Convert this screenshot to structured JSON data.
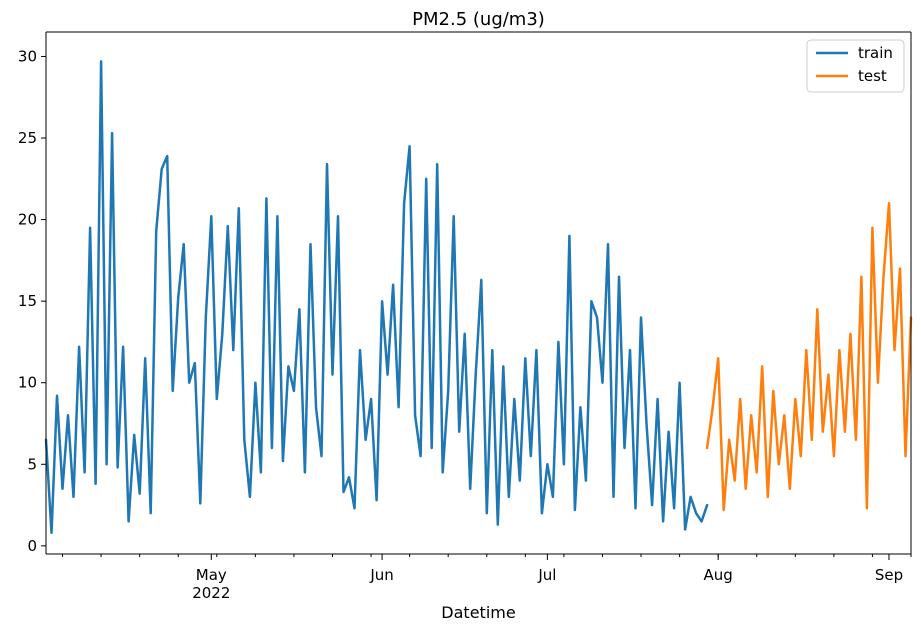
{
  "chart_data": {
    "type": "line",
    "title": "PM2.5 (ug/m3)",
    "xlabel": "Datetime",
    "ylabel": "",
    "x_range": [
      "2022-04-01",
      "2022-09-05"
    ],
    "ylim": [
      -0.5,
      31.5
    ],
    "y_ticks": [
      0,
      5,
      10,
      15,
      20,
      25,
      30
    ],
    "x_ticks": [
      {
        "date": "2022-05-01",
        "label": "May",
        "sublabel": "2022"
      },
      {
        "date": "2022-06-01",
        "label": "Jun",
        "sublabel": ""
      },
      {
        "date": "2022-07-01",
        "label": "Jul",
        "sublabel": ""
      },
      {
        "date": "2022-08-01",
        "label": "Aug",
        "sublabel": ""
      },
      {
        "date": "2022-09-01",
        "label": "Sep",
        "sublabel": ""
      }
    ],
    "grid": false,
    "legend": "top-right",
    "series": [
      {
        "name": "train",
        "color": "#1f77b4",
        "x": [
          "2022-04-01",
          "2022-04-02",
          "2022-04-03",
          "2022-04-04",
          "2022-04-05",
          "2022-04-06",
          "2022-04-07",
          "2022-04-08",
          "2022-04-09",
          "2022-04-10",
          "2022-04-11",
          "2022-04-12",
          "2022-04-13",
          "2022-04-14",
          "2022-04-15",
          "2022-04-16",
          "2022-04-17",
          "2022-04-18",
          "2022-04-19",
          "2022-04-20",
          "2022-04-21",
          "2022-04-22",
          "2022-04-23",
          "2022-04-24",
          "2022-04-25",
          "2022-04-26",
          "2022-04-27",
          "2022-04-28",
          "2022-04-29",
          "2022-04-30",
          "2022-05-01",
          "2022-05-02",
          "2022-05-03",
          "2022-05-04",
          "2022-05-05",
          "2022-05-06",
          "2022-05-07",
          "2022-05-08",
          "2022-05-09",
          "2022-05-10",
          "2022-05-11",
          "2022-05-12",
          "2022-05-13",
          "2022-05-14",
          "2022-05-15",
          "2022-05-16",
          "2022-05-17",
          "2022-05-18",
          "2022-05-19",
          "2022-05-20",
          "2022-05-21",
          "2022-05-22",
          "2022-05-23",
          "2022-05-24",
          "2022-05-25",
          "2022-05-26",
          "2022-05-27",
          "2022-05-28",
          "2022-05-29",
          "2022-05-30",
          "2022-05-31",
          "2022-06-01",
          "2022-06-02",
          "2022-06-03",
          "2022-06-04",
          "2022-06-05",
          "2022-06-06",
          "2022-06-07",
          "2022-06-08",
          "2022-06-09",
          "2022-06-10",
          "2022-06-11",
          "2022-06-12",
          "2022-06-13",
          "2022-06-14",
          "2022-06-15",
          "2022-06-16",
          "2022-06-17",
          "2022-06-18",
          "2022-06-19",
          "2022-06-20",
          "2022-06-21",
          "2022-06-22",
          "2022-06-23",
          "2022-06-24",
          "2022-06-25",
          "2022-06-26",
          "2022-06-27",
          "2022-06-28",
          "2022-06-29",
          "2022-06-30",
          "2022-07-01",
          "2022-07-02",
          "2022-07-03",
          "2022-07-04",
          "2022-07-05",
          "2022-07-06",
          "2022-07-07",
          "2022-07-08",
          "2022-07-09",
          "2022-07-10",
          "2022-07-11",
          "2022-07-12",
          "2022-07-13",
          "2022-07-14",
          "2022-07-15",
          "2022-07-16",
          "2022-07-17",
          "2022-07-18",
          "2022-07-19",
          "2022-07-20",
          "2022-07-21",
          "2022-07-22",
          "2022-07-23",
          "2022-07-24",
          "2022-07-25",
          "2022-07-26",
          "2022-07-27",
          "2022-07-28",
          "2022-07-29",
          "2022-07-30"
        ],
        "values": [
          6.5,
          0.8,
          9.2,
          3.5,
          8.0,
          3.0,
          12.2,
          4.5,
          19.5,
          3.8,
          29.7,
          5.0,
          25.3,
          4.8,
          12.2,
          1.5,
          6.8,
          3.2,
          11.5,
          2.0,
          19.3,
          23.1,
          23.9,
          9.5,
          15.2,
          18.5,
          10.0,
          11.2,
          2.6,
          14.0,
          20.2,
          9.0,
          13.0,
          19.6,
          12.0,
          20.7,
          6.5,
          3.0,
          10.0,
          4.5,
          21.3,
          6.0,
          20.2,
          5.2,
          11.0,
          9.5,
          14.5,
          4.5,
          18.5,
          8.5,
          5.5,
          23.4,
          10.5,
          20.2,
          3.3,
          4.2,
          2.3,
          12.0,
          6.5,
          9.0,
          2.8,
          15.0,
          10.5,
          16.0,
          8.5,
          21.0,
          24.5,
          8.0,
          5.5,
          22.5,
          6.0,
          23.4,
          4.5,
          9.5,
          20.2,
          7.0,
          13.0,
          3.5,
          10.5,
          16.3,
          2.0,
          12.0,
          1.3,
          11.0,
          3.0,
          9.0,
          4.0,
          11.5,
          5.5,
          12.0,
          2.0,
          5.0,
          3.0,
          12.5,
          5.0,
          19.0,
          2.2,
          8.5,
          4.0,
          15.0,
          14.0,
          10.0,
          18.5,
          3.0,
          16.5,
          6.0,
          12.0,
          2.3,
          14.0,
          7.5,
          2.5,
          9.0,
          1.5,
          7.0,
          2.3,
          10.0,
          1.0,
          3.0,
          2.0,
          1.5,
          2.5
        ]
      },
      {
        "name": "test",
        "color": "#ff7f0e",
        "x": [
          "2022-07-30",
          "2022-07-31",
          "2022-08-01",
          "2022-08-02",
          "2022-08-03",
          "2022-08-04",
          "2022-08-05",
          "2022-08-06",
          "2022-08-07",
          "2022-08-08",
          "2022-08-09",
          "2022-08-10",
          "2022-08-11",
          "2022-08-12",
          "2022-08-13",
          "2022-08-14",
          "2022-08-15",
          "2022-08-16",
          "2022-08-17",
          "2022-08-18",
          "2022-08-19",
          "2022-08-20",
          "2022-08-21",
          "2022-08-22",
          "2022-08-23",
          "2022-08-24",
          "2022-08-25",
          "2022-08-26",
          "2022-08-27",
          "2022-08-28",
          "2022-08-29",
          "2022-08-30",
          "2022-08-31",
          "2022-09-01",
          "2022-09-02",
          "2022-09-03",
          "2022-09-04",
          "2022-09-05"
        ],
        "values": [
          6.0,
          8.5,
          11.5,
          2.2,
          6.5,
          4.0,
          9.0,
          3.5,
          8.0,
          4.5,
          11.0,
          3.0,
          9.5,
          5.0,
          8.0,
          3.5,
          9.0,
          5.5,
          12.0,
          6.5,
          14.5,
          7.0,
          10.5,
          5.5,
          12.0,
          7.0,
          13.0,
          6.5,
          16.5,
          2.3,
          19.5,
          10.0,
          16.5,
          21.0,
          12.0,
          17.0,
          5.5,
          14.0
        ]
      }
    ]
  }
}
